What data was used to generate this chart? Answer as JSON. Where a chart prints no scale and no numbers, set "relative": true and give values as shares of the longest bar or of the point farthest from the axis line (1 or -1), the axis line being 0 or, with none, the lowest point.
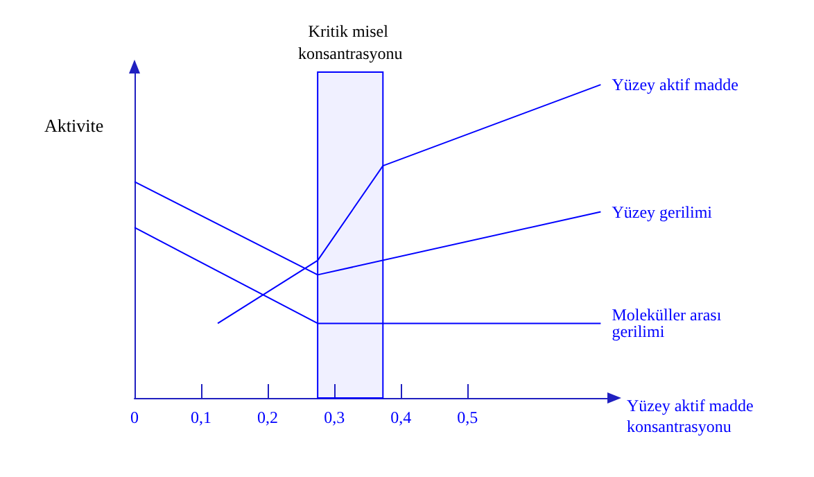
{
  "chart_data": {
    "type": "line",
    "relative": true,
    "xlabel": "Yüzey aktif madde konsantrasyonu",
    "ylabel": "Aktivite",
    "xlim": [
      0,
      0.71
    ],
    "xticks": [
      0,
      {
        "value": 0.1,
        "label": "0,1"
      },
      {
        "value": 0.2,
        "label": "0,2"
      },
      {
        "value": 0.3,
        "label": "0,3"
      },
      {
        "value": 0.4,
        "label": "0,4"
      },
      {
        "value": 0.5,
        "label": "0,5"
      }
    ],
    "series": [
      {
        "name": "Yüzey aktif madde",
        "color": "#0000ff",
        "x": [
          0.125,
          0.275,
          0.373,
          0.7
        ],
        "values": [
          0.238,
          0.439,
          0.741,
          1
        ]
      },
      {
        "name": "Yüzey gerilimi",
        "color": "#0000ff",
        "x": [
          0,
          0.275,
          0.7
        ],
        "values": [
          0.69,
          0.393,
          0.594
        ]
      },
      {
        "name": "Moleküller arası gerilimi",
        "color": "#0000ff",
        "x": [
          0,
          0.275,
          0.7
        ],
        "values": [
          0.544,
          0.238,
          0.238
        ]
      }
    ],
    "bands": [
      {
        "axis": "x",
        "from": 0.275,
        "to": 0.373,
        "label": "Kritik misel konsantrasyonu",
        "color": "#0000ff"
      }
    ],
    "marker": "none",
    "line_style": "solid",
    "grid": false,
    "legend": false
  }
}
